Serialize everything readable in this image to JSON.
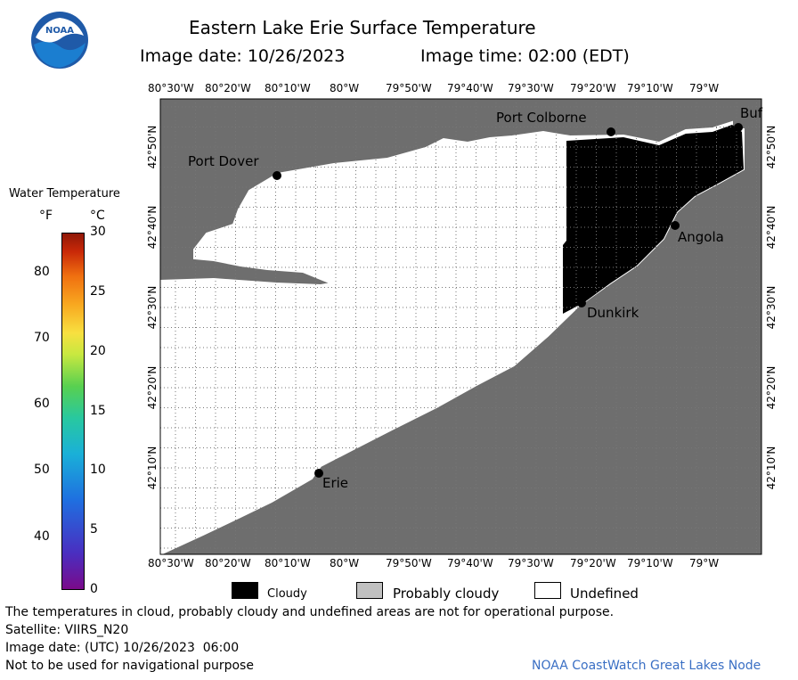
{
  "header": {
    "title": "Eastern Lake Erie Surface Temperature",
    "image_date": "Image date: 10/26/2023",
    "image_time": "Image time: 02:00 (EDT)"
  },
  "logo": {
    "text": "NOAA",
    "icon": "noaa-logo"
  },
  "colorbar": {
    "title": "Water Temperature",
    "unit_f": "°F",
    "unit_c": "°C",
    "f_ticks": [
      "80",
      "70",
      "60",
      "50",
      "40"
    ],
    "c_ticks": [
      "30",
      "25",
      "20",
      "15",
      "10",
      "5",
      "0"
    ]
  },
  "map": {
    "lon_labels": [
      "80°30'W",
      "80°20'W",
      "80°10'W",
      "80°W",
      "79°50'W",
      "79°40'W",
      "79°30'W",
      "79°20'W",
      "79°10'W",
      "79°W"
    ],
    "lat_labels": [
      "42°50'N",
      "42°40'N",
      "42°30'N",
      "42°20'N",
      "42°10'N"
    ],
    "places": {
      "port_dover": "Port Dover",
      "port_colborne": "Port Colborne",
      "buffalo": "Buf",
      "angola": "Angola",
      "dunkirk": "Dunkirk",
      "erie": "Erie"
    },
    "colors": {
      "land": "#6e6e6e",
      "cloudy": "#000000",
      "undefined": "#ffffff"
    }
  },
  "legend": {
    "cloudy": "Cloudy",
    "probably_cloudy": "Probably cloudy",
    "undefined": "Undefined"
  },
  "footer": {
    "disclaimer": "The temperatures in cloud, probably cloudy and undefined areas are not for operational purpose.",
    "satellite": "Satellite: VIIRS_N20",
    "utc_date": "Image date: (UTC) 10/26/2023  06:00",
    "nav": "Not to be used for navigational purpose",
    "credit": "NOAA CoastWatch Great Lakes Node"
  }
}
